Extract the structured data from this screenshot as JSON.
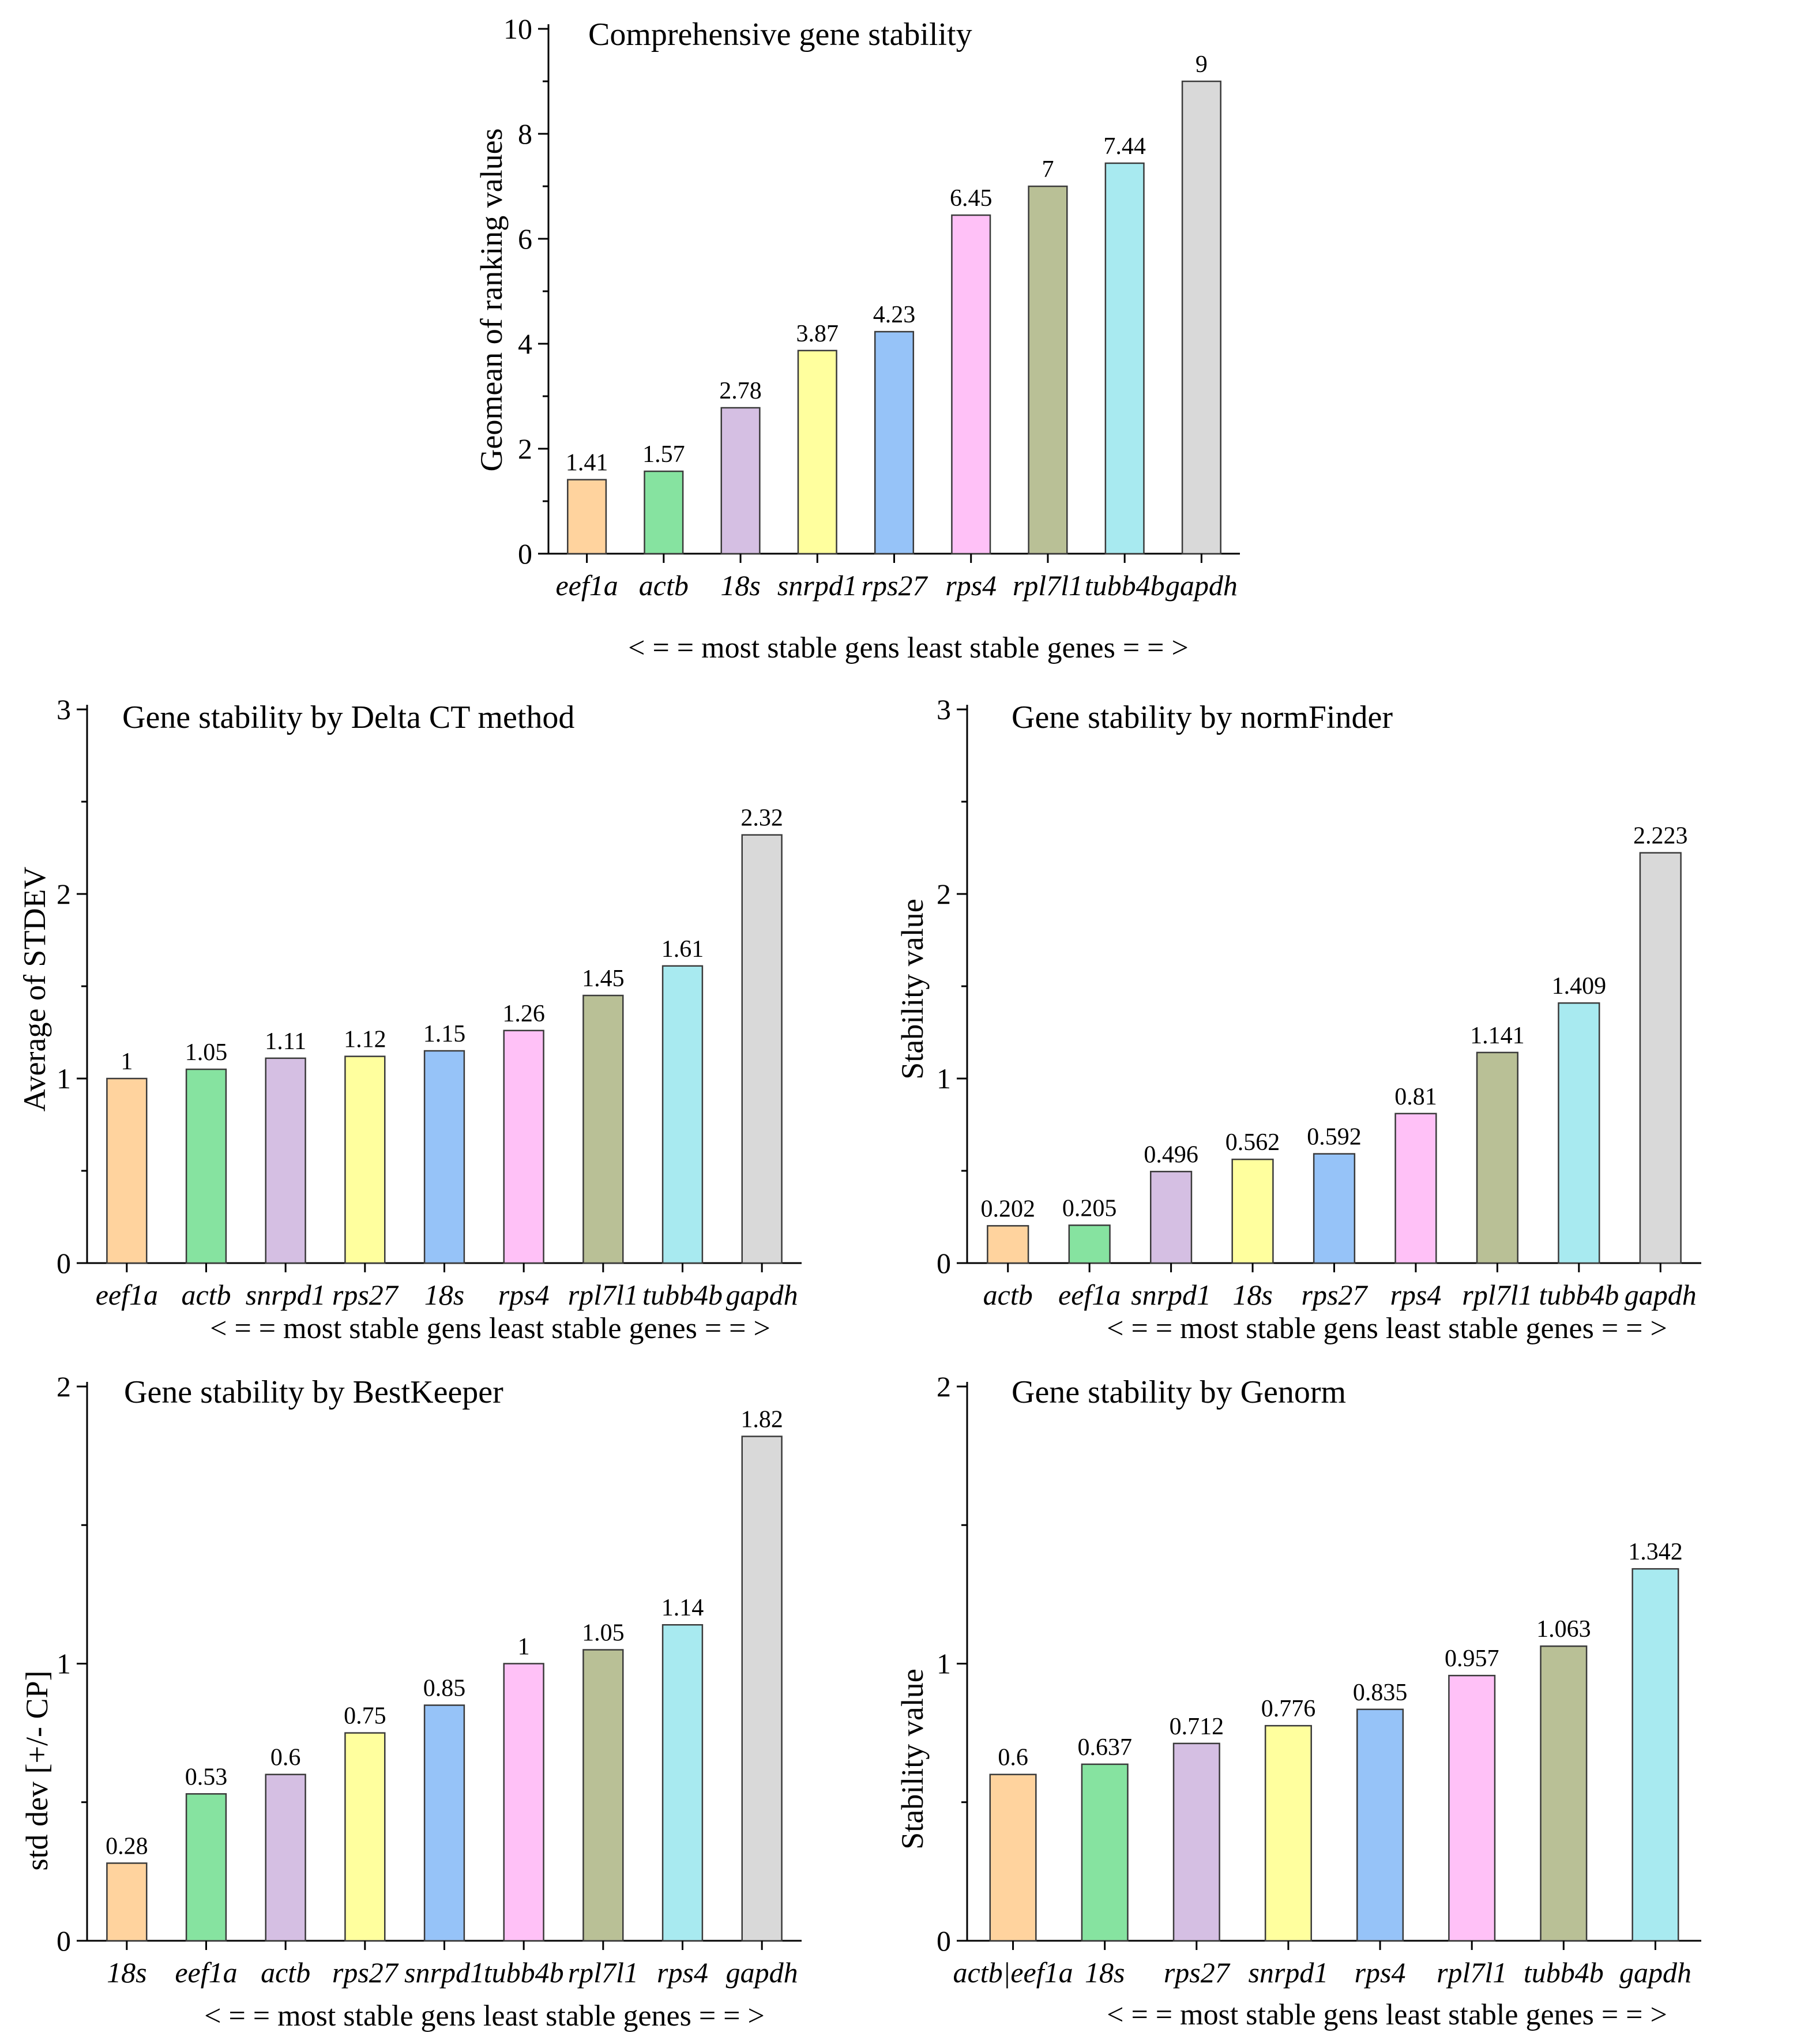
{
  "chart_data": [
    {
      "type": "bar",
      "title": "Comprehensive gene stability",
      "xlabel": "< = = most stable gens  least stable genes = = >",
      "ylabel": "Geomean of ranking values",
      "ylim": [
        0,
        10
      ],
      "yticks": [
        "0",
        "2",
        "4",
        "6",
        "8",
        "10"
      ],
      "categories": [
        "eef1a",
        "actb",
        "18s",
        "snrpd1",
        "rps27",
        "rps4",
        "rpl7l1",
        "tubb4b",
        "gapdh"
      ],
      "values": [
        1.41,
        1.57,
        2.78,
        3.87,
        4.23,
        6.45,
        7,
        7.44,
        9
      ],
      "labels": [
        "1.41",
        "1.57",
        "2.78",
        "3.87",
        "4.23",
        "6.45",
        "7",
        "7.44",
        "9"
      ],
      "colors": [
        "#FFD39E",
        "#86E3A0",
        "#D5BFE3",
        "#FFFF9E",
        "#96C3F8",
        "#FFC1F7",
        "#B9C096",
        "#A8EAF0",
        "#D9D9D9"
      ]
    },
    {
      "type": "bar",
      "title": "Gene stability by Delta CT method",
      "xlabel": "< = = most stable gens  least stable genes = = >",
      "ylabel": "Average of STDEV",
      "ylim": [
        0,
        3
      ],
      "yticks": [
        "0",
        "1",
        "2",
        "3"
      ],
      "categories": [
        "eef1a",
        "actb",
        "snrpd1",
        "rps27",
        "18s",
        "rps4",
        "rpl7l1",
        "tubb4b",
        "gapdh"
      ],
      "values": [
        1,
        1.05,
        1.11,
        1.12,
        1.15,
        1.26,
        1.45,
        1.61,
        2.32
      ],
      "labels": [
        "1",
        "1.05",
        "1.11",
        "1.12",
        "1.15",
        "1.26",
        "1.45",
        "1.61",
        "2.32"
      ],
      "colors": [
        "#FFD39E",
        "#86E3A0",
        "#D5BFE3",
        "#FFFF9E",
        "#96C3F8",
        "#FFC1F7",
        "#B9C096",
        "#A8EAF0",
        "#D9D9D9"
      ]
    },
    {
      "type": "bar",
      "title": "Gene stability by normFinder",
      "xlabel": "< = = most stable gens  least stable genes = = >",
      "ylabel": "Stability value",
      "ylim": [
        0,
        3
      ],
      "yticks": [
        "0",
        "1",
        "2",
        "3"
      ],
      "categories": [
        "actb",
        "eef1a",
        "snrpd1",
        "18s",
        "rps27",
        "rps4",
        "rpl7l1",
        "tubb4b",
        "gapdh"
      ],
      "values": [
        0.202,
        0.205,
        0.496,
        0.562,
        0.592,
        0.81,
        1.141,
        1.409,
        2.223
      ],
      "labels": [
        "0.202",
        "0.205",
        "0.496",
        "0.562",
        "0.592",
        "0.81",
        "1.141",
        "1.409",
        "2.223"
      ],
      "colors": [
        "#FFD39E",
        "#86E3A0",
        "#D5BFE3",
        "#FFFF9E",
        "#96C3F8",
        "#FFC1F7",
        "#B9C096",
        "#A8EAF0",
        "#D9D9D9"
      ]
    },
    {
      "type": "bar",
      "title": "Gene stability by BestKeeper",
      "xlabel": "< = = most stable gens  least stable genes = = >",
      "ylabel": "std dev [+/- CP]",
      "ylim": [
        0,
        2
      ],
      "yticks": [
        "0",
        "1",
        "2"
      ],
      "categories": [
        "18s",
        "eef1a",
        "actb",
        "rps27",
        "snrpd1",
        "tubb4b",
        "rpl7l1",
        "rps4",
        "gapdh"
      ],
      "values": [
        0.28,
        0.53,
        0.6,
        0.75,
        0.85,
        1,
        1.05,
        1.14,
        1.82
      ],
      "labels": [
        "0.28",
        "0.53",
        "0.6",
        "0.75",
        "0.85",
        "1",
        "1.05",
        "1.14",
        "1.82"
      ],
      "colors": [
        "#FFD39E",
        "#86E3A0",
        "#D5BFE3",
        "#FFFF9E",
        "#96C3F8",
        "#FFC1F7",
        "#B9C096",
        "#A8EAF0",
        "#D9D9D9"
      ]
    },
    {
      "type": "bar",
      "title": "Gene stability by Genorm",
      "xlabel": "< = = most stable gens  least stable genes = = >",
      "ylabel": "Stability value",
      "ylim": [
        0,
        2
      ],
      "yticks": [
        "0",
        "1",
        "2"
      ],
      "categories": [
        "actb|eef1a",
        "18s",
        "rps27",
        "snrpd1",
        "rps4",
        "rpl7l1",
        "tubb4b",
        "gapdh"
      ],
      "values": [
        0.6,
        0.637,
        0.712,
        0.776,
        0.835,
        0.957,
        1.063,
        1.342
      ],
      "labels": [
        "0.6",
        "0.637",
        "0.712",
        "0.776",
        "0.835",
        "0.957",
        "1.063",
        "1.342"
      ],
      "colors": [
        "#FFD39E",
        "#86E3A0",
        "#D5BFE3",
        "#FFFF9E",
        "#96C3F8",
        "#FFC1F7",
        "#B9C096",
        "#A8EAF0"
      ]
    }
  ]
}
